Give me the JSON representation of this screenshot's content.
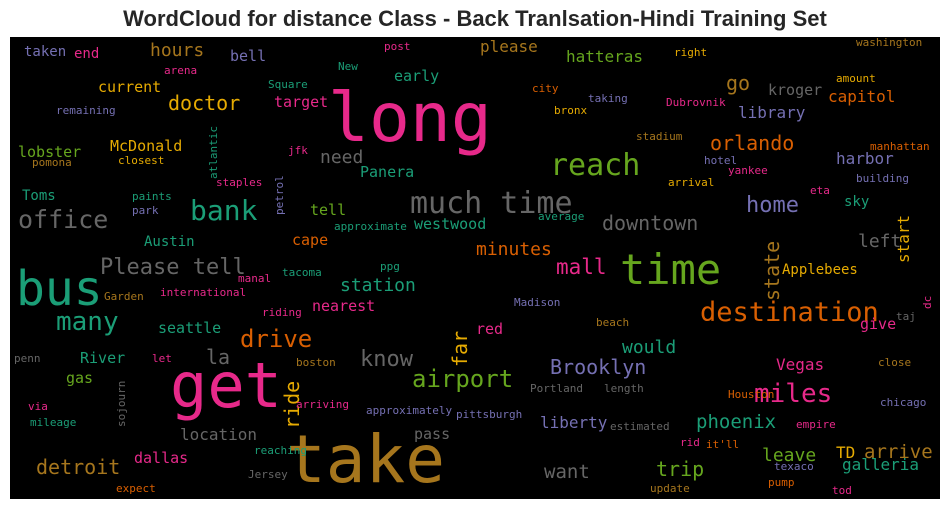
{
  "title": "WordCloud for distance Class - Back Tranlsation-Hindi Training Set",
  "palette": {
    "pink": "#e7298a",
    "gold": "#a6761d",
    "green": "#1b9e77",
    "lime": "#66a61e",
    "orange": "#d95f02",
    "amber": "#e6ab02",
    "purple": "#7570b3",
    "gray": "#666666"
  },
  "chart_data": {
    "type": "wordcloud",
    "words": [
      {
        "text": "long",
        "weight": 1.0,
        "color": "pink"
      },
      {
        "text": "take",
        "weight": 0.98,
        "color": "gold"
      },
      {
        "text": "get",
        "weight": 0.95,
        "color": "pink"
      },
      {
        "text": "bus",
        "weight": 0.78,
        "color": "green"
      },
      {
        "text": "time",
        "weight": 0.72,
        "color": "lime"
      },
      {
        "text": "much time",
        "weight": 0.52,
        "color": "gray"
      },
      {
        "text": "reach",
        "weight": 0.5,
        "color": "lime"
      },
      {
        "text": "bank",
        "weight": 0.48,
        "color": "green"
      },
      {
        "text": "destination",
        "weight": 0.46,
        "color": "orange"
      },
      {
        "text": "many",
        "weight": 0.45,
        "color": "green"
      },
      {
        "text": "miles",
        "weight": 0.44,
        "color": "pink"
      },
      {
        "text": "office",
        "weight": 0.42,
        "color": "gray"
      },
      {
        "text": "airport",
        "weight": 0.41,
        "color": "lime"
      },
      {
        "text": "drive",
        "weight": 0.4,
        "color": "orange"
      },
      {
        "text": "Please tell",
        "weight": 0.38,
        "color": "gray"
      },
      {
        "text": "know",
        "weight": 0.37,
        "color": "gray"
      },
      {
        "text": "home",
        "weight": 0.35,
        "color": "purple"
      },
      {
        "text": "mall",
        "weight": 0.34,
        "color": "pink"
      },
      {
        "text": "Brooklyn",
        "weight": 0.33,
        "color": "purple"
      },
      {
        "text": "ride",
        "weight": 0.33,
        "color": "amber"
      },
      {
        "text": "state",
        "weight": 0.32,
        "color": "gold"
      },
      {
        "text": "far",
        "weight": 0.32,
        "color": "amber"
      },
      {
        "text": "downtown",
        "weight": 0.32,
        "color": "gray"
      },
      {
        "text": "orlando",
        "weight": 0.32,
        "color": "orange"
      },
      {
        "text": "doctor",
        "weight": 0.32,
        "color": "amber"
      },
      {
        "text": "trip",
        "weight": 0.32,
        "color": "lime"
      },
      {
        "text": "detroit",
        "weight": 0.32,
        "color": "gold"
      },
      {
        "text": "phoenix",
        "weight": 0.31,
        "color": "green"
      },
      {
        "text": "arrive",
        "weight": 0.31,
        "color": "gold"
      },
      {
        "text": "want",
        "weight": 0.3,
        "color": "gray"
      },
      {
        "text": "minutes",
        "weight": 0.29,
        "color": "orange"
      },
      {
        "text": "station",
        "weight": 0.29,
        "color": "green"
      },
      {
        "text": "would",
        "weight": 0.29,
        "color": "green"
      },
      {
        "text": "la",
        "weight": 0.29,
        "color": "gray"
      },
      {
        "text": "leave",
        "weight": 0.28,
        "color": "lime"
      },
      {
        "text": "go",
        "weight": 0.28,
        "color": "gold"
      },
      {
        "text": "hours",
        "weight": 0.27,
        "color": "gold"
      },
      {
        "text": "need",
        "weight": 0.26,
        "color": "gray"
      },
      {
        "text": "left",
        "weight": 0.27,
        "color": "gray"
      },
      {
        "text": "start",
        "weight": 0.27,
        "color": "amber"
      },
      {
        "text": "liberty",
        "weight": 0.26,
        "color": "purple"
      },
      {
        "text": "location",
        "weight": 0.26,
        "color": "gray"
      },
      {
        "text": "galleria",
        "weight": 0.26,
        "color": "green"
      },
      {
        "text": "capitol",
        "weight": 0.25,
        "color": "orange"
      },
      {
        "text": "library",
        "weight": 0.25,
        "color": "purple"
      },
      {
        "text": "harbor",
        "weight": 0.25,
        "color": "purple"
      },
      {
        "text": "Vegas",
        "weight": 0.25,
        "color": "pink"
      },
      {
        "text": "TD",
        "weight": 0.26,
        "color": "amber"
      },
      {
        "text": "dallas",
        "weight": 0.25,
        "color": "pink"
      },
      {
        "text": "nearest",
        "weight": 0.25,
        "color": "pink"
      },
      {
        "text": "Panera",
        "weight": 0.24,
        "color": "green"
      },
      {
        "text": "westwood",
        "weight": 0.24,
        "color": "green"
      },
      {
        "text": "tell",
        "weight": 0.24,
        "color": "lime"
      },
      {
        "text": "cape",
        "weight": 0.24,
        "color": "orange"
      },
      {
        "text": "kroger",
        "weight": 0.23,
        "color": "gray"
      },
      {
        "text": "lobster",
        "weight": 0.23,
        "color": "lime"
      },
      {
        "text": "McDonald",
        "weight": 0.23,
        "color": "amber"
      },
      {
        "text": "current",
        "weight": 0.23,
        "color": "amber"
      },
      {
        "text": "Toms",
        "weight": 0.22,
        "color": "green"
      },
      {
        "text": "Austin",
        "weight": 0.22,
        "color": "green"
      },
      {
        "text": "Applebees",
        "weight": 0.22,
        "color": "amber"
      },
      {
        "text": "sky",
        "weight": 0.23,
        "color": "green"
      },
      {
        "text": "hatteras",
        "weight": 0.22,
        "color": "lime"
      },
      {
        "text": "please",
        "weight": 0.22,
        "color": "gold"
      },
      {
        "text": "early",
        "weight": 0.22,
        "color": "green"
      },
      {
        "text": "target",
        "weight": 0.22,
        "color": "pink"
      },
      {
        "text": "River",
        "weight": 0.22,
        "color": "green"
      },
      {
        "text": "gas",
        "weight": 0.22,
        "color": "lime"
      },
      {
        "text": "red",
        "weight": 0.22,
        "color": "pink"
      },
      {
        "text": "pass",
        "weight": 0.21,
        "color": "gray"
      },
      {
        "text": "seattle",
        "weight": 0.21,
        "color": "green"
      },
      {
        "text": "give",
        "weight": 0.21,
        "color": "pink"
      },
      {
        "text": "taken",
        "weight": 0.2,
        "color": "purple"
      },
      {
        "text": "end",
        "weight": 0.2,
        "color": "pink"
      },
      {
        "text": "bell",
        "weight": 0.2,
        "color": "purple"
      },
      {
        "text": "washington",
        "weight": 0.15,
        "color": "gold"
      },
      {
        "text": "post",
        "weight": 0.14,
        "color": "pink"
      },
      {
        "text": "right",
        "weight": 0.14,
        "color": "amber"
      },
      {
        "text": "New",
        "weight": 0.14,
        "color": "green"
      },
      {
        "text": "arena",
        "weight": 0.14,
        "color": "pink"
      },
      {
        "text": "Square",
        "weight": 0.14,
        "color": "green"
      },
      {
        "text": "city",
        "weight": 0.14,
        "color": "orange"
      },
      {
        "text": "amount",
        "weight": 0.14,
        "color": "amber"
      },
      {
        "text": "bronx",
        "weight": 0.14,
        "color": "amber"
      },
      {
        "text": "taking",
        "weight": 0.14,
        "color": "purple"
      },
      {
        "text": "Dubrovnik",
        "weight": 0.14,
        "color": "pink"
      },
      {
        "text": "remaining",
        "weight": 0.14,
        "color": "purple"
      },
      {
        "text": "stadium",
        "weight": 0.14,
        "color": "gold"
      },
      {
        "text": "manhattan",
        "weight": 0.14,
        "color": "orange"
      },
      {
        "text": "pomona",
        "weight": 0.14,
        "color": "gold"
      },
      {
        "text": "closest",
        "weight": 0.14,
        "color": "amber"
      },
      {
        "text": "atlantic",
        "weight": 0.14,
        "color": "green"
      },
      {
        "text": "jfk",
        "weight": 0.14,
        "color": "pink"
      },
      {
        "text": "hotel",
        "weight": 0.14,
        "color": "purple"
      },
      {
        "text": "yankee",
        "weight": 0.14,
        "color": "pink"
      },
      {
        "text": "building",
        "weight": 0.14,
        "color": "purple"
      },
      {
        "text": "staples",
        "weight": 0.14,
        "color": "pink"
      },
      {
        "text": "petrol",
        "weight": 0.14,
        "color": "purple"
      },
      {
        "text": "paints",
        "weight": 0.14,
        "color": "green"
      },
      {
        "text": "arrival",
        "weight": 0.14,
        "color": "amber"
      },
      {
        "text": "eta",
        "weight": 0.14,
        "color": "pink"
      },
      {
        "text": "park",
        "weight": 0.14,
        "color": "purple"
      },
      {
        "text": "average",
        "weight": 0.14,
        "color": "green"
      },
      {
        "text": "approximate",
        "weight": 0.14,
        "color": "green"
      },
      {
        "text": "tacoma",
        "weight": 0.14,
        "color": "green"
      },
      {
        "text": "ppg",
        "weight": 0.14,
        "color": "green"
      },
      {
        "text": "manal",
        "weight": 0.14,
        "color": "pink"
      },
      {
        "text": "Garden",
        "weight": 0.14,
        "color": "gold"
      },
      {
        "text": "international",
        "weight": 0.14,
        "color": "pink"
      },
      {
        "text": "riding",
        "weight": 0.14,
        "color": "pink"
      },
      {
        "text": "Madison",
        "weight": 0.14,
        "color": "purple"
      },
      {
        "text": "beach",
        "weight": 0.14,
        "color": "gold"
      },
      {
        "text": "taj",
        "weight": 0.14,
        "color": "gray"
      },
      {
        "text": "dc",
        "weight": 0.14,
        "color": "pink"
      },
      {
        "text": "penn",
        "weight": 0.14,
        "color": "gray"
      },
      {
        "text": "let",
        "weight": 0.14,
        "color": "pink"
      },
      {
        "text": "boston",
        "weight": 0.14,
        "color": "gold"
      },
      {
        "text": "close",
        "weight": 0.14,
        "color": "gold"
      },
      {
        "text": "sojourn",
        "weight": 0.14,
        "color": "gray"
      },
      {
        "text": "Portland",
        "weight": 0.14,
        "color": "gray"
      },
      {
        "text": "length",
        "weight": 0.14,
        "color": "gray"
      },
      {
        "text": "Houston",
        "weight": 0.14,
        "color": "orange"
      },
      {
        "text": "via",
        "weight": 0.14,
        "color": "pink"
      },
      {
        "text": "arriving",
        "weight": 0.14,
        "color": "pink"
      },
      {
        "text": "pittsburgh",
        "weight": 0.14,
        "color": "purple"
      },
      {
        "text": "chicago",
        "weight": 0.14,
        "color": "purple"
      },
      {
        "text": "mileage",
        "weight": 0.14,
        "color": "green"
      },
      {
        "text": "approximately",
        "weight": 0.14,
        "color": "purple"
      },
      {
        "text": "estimated",
        "weight": 0.14,
        "color": "gray"
      },
      {
        "text": "empire",
        "weight": 0.14,
        "color": "pink"
      },
      {
        "text": "rid",
        "weight": 0.14,
        "color": "pink"
      },
      {
        "text": "it'll",
        "weight": 0.14,
        "color": "orange"
      },
      {
        "text": "reaching",
        "weight": 0.14,
        "color": "green"
      },
      {
        "text": "texaco",
        "weight": 0.14,
        "color": "purple"
      },
      {
        "text": "Jersey",
        "weight": 0.14,
        "color": "gray"
      },
      {
        "text": "expect",
        "weight": 0.14,
        "color": "orange"
      },
      {
        "text": "update",
        "weight": 0.14,
        "color": "gold"
      },
      {
        "text": "pump",
        "weight": 0.14,
        "color": "orange"
      },
      {
        "text": "tod",
        "weight": 0.14,
        "color": "pink"
      }
    ]
  }
}
